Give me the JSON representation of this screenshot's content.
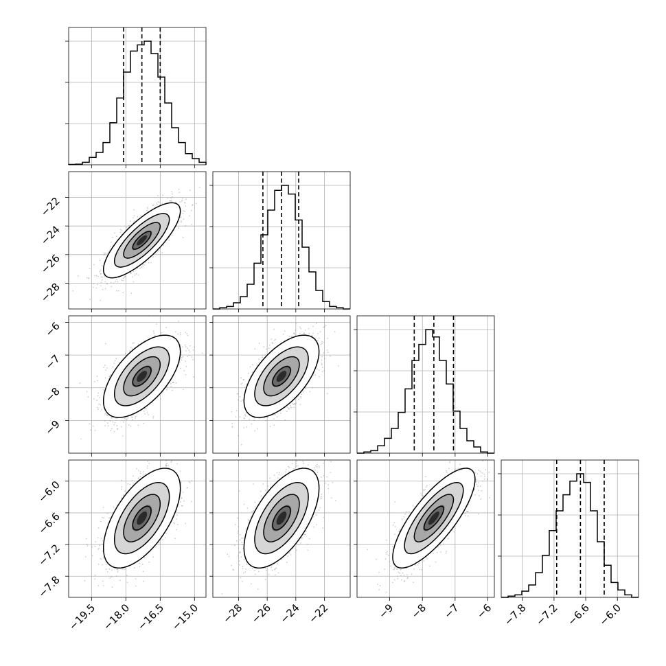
{
  "chart_data": {
    "type": "corner",
    "grid": true,
    "quantile_lines": "dashed",
    "parameters": [
      {
        "range": [
          -20.5,
          -14.5
        ],
        "quantiles": [
          -18.1,
          -17.3,
          -16.5
        ],
        "ticks": [
          {
            "value": -19.5,
            "label": "−19.5"
          },
          {
            "value": -18.0,
            "label": "−18.0"
          },
          {
            "value": -16.5,
            "label": "−16.5"
          },
          {
            "value": -15.0,
            "label": "−15.0"
          }
        ],
        "hist": [
          0.003,
          0.005,
          0.02,
          0.06,
          0.1,
          0.18,
          0.34,
          0.54,
          0.75,
          0.92,
          0.97,
          1.0,
          0.9,
          0.71,
          0.5,
          0.3,
          0.18,
          0.09,
          0.05,
          0.02
        ]
      },
      {
        "range": [
          -29.8,
          -20.2
        ],
        "quantiles": [
          -26.3,
          -25.0,
          -23.8
        ],
        "ticks": [
          {
            "value": -28,
            "label": "−28"
          },
          {
            "value": -26,
            "label": "−26"
          },
          {
            "value": -24,
            "label": "−24"
          },
          {
            "value": -22,
            "label": "−22"
          }
        ],
        "hist": [
          0,
          0.01,
          0.02,
          0.05,
          0.1,
          0.2,
          0.37,
          0.6,
          0.8,
          0.96,
          1.0,
          0.93,
          0.72,
          0.5,
          0.3,
          0.15,
          0.06,
          0.02,
          0.01,
          0
        ]
      },
      {
        "range": [
          -10.0,
          -5.8
        ],
        "quantiles": [
          -8.25,
          -7.65,
          -7.05
        ],
        "ticks": [
          {
            "value": -9,
            "label": "−9"
          },
          {
            "value": -8,
            "label": "−8"
          },
          {
            "value": -7,
            "label": "−7"
          },
          {
            "value": -6,
            "label": "−6"
          }
        ],
        "hist": [
          0,
          0.01,
          0.02,
          0.06,
          0.12,
          0.2,
          0.33,
          0.52,
          0.75,
          0.88,
          1.0,
          0.94,
          0.75,
          0.56,
          0.34,
          0.2,
          0.1,
          0.05,
          0.01,
          0
        ]
      },
      {
        "range": [
          -8.2,
          -5.6
        ],
        "quantiles": [
          -7.15,
          -6.7,
          -6.25
        ],
        "ticks": [
          {
            "value": -7.8,
            "label": "−7.8"
          },
          {
            "value": -7.2,
            "label": "−7.2"
          },
          {
            "value": -6.6,
            "label": "−6.6"
          },
          {
            "value": -6.0,
            "label": "−6.0"
          }
        ],
        "hist": [
          0,
          0.01,
          0.02,
          0.05,
          0.1,
          0.2,
          0.34,
          0.54,
          0.7,
          0.83,
          0.94,
          1.0,
          0.93,
          0.7,
          0.45,
          0.26,
          0.12,
          0.06,
          0.02,
          0
        ]
      }
    ],
    "correlations": {
      "1-0": 0.78,
      "2-0": 0.6,
      "2-1": 0.6,
      "3-0": 0.6,
      "3-1": 0.6,
      "3-2": 0.78
    }
  }
}
